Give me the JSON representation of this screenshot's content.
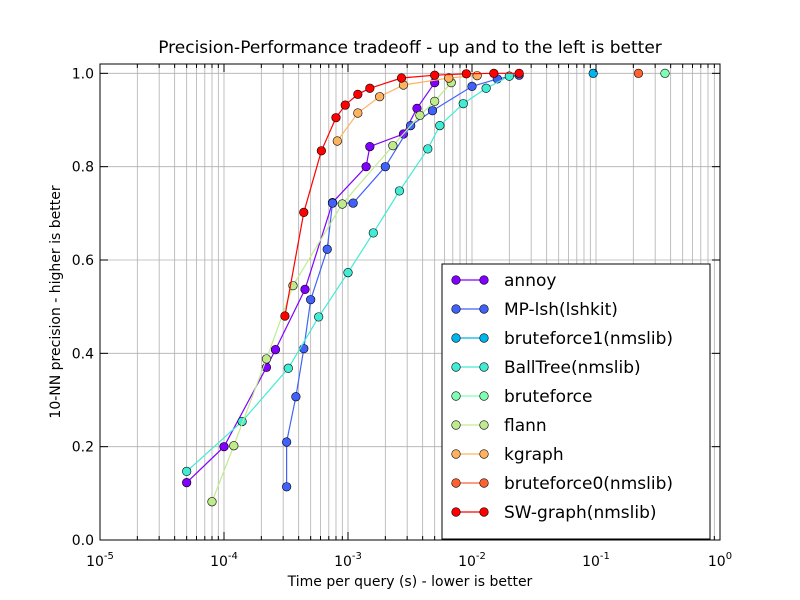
{
  "chart_data": {
    "type": "line",
    "title": "Precision-Performance tradeoff - up and to the left is better",
    "xlabel": "Time per query (s) - lower is better",
    "ylabel": "10-NN precision - higher is better",
    "xscale": "log",
    "xlim": [
      1e-05,
      1
    ],
    "ylim": [
      0.0,
      1.02
    ],
    "x_tick_labels": [
      {
        "base": "10",
        "exp": "-5"
      },
      {
        "base": "10",
        "exp": "-4"
      },
      {
        "base": "10",
        "exp": "-3"
      },
      {
        "base": "10",
        "exp": "-2"
      },
      {
        "base": "10",
        "exp": "-1"
      },
      {
        "base": "10",
        "exp": "0"
      }
    ],
    "y_tick_labels": [
      "0.0",
      "0.2",
      "0.4",
      "0.6",
      "0.8",
      "1.0"
    ],
    "y_ticks": [
      0.0,
      0.2,
      0.4,
      0.6,
      0.8,
      1.0
    ],
    "grid": true,
    "legend_position": "lower-right",
    "series": [
      {
        "name": "annoy",
        "color": "#8000ff",
        "x": [
          5e-05,
          0.0001,
          0.00022,
          0.00026,
          0.00045,
          0.00075,
          0.0014,
          0.0015,
          0.0028,
          0.0036,
          0.005
        ],
        "y": [
          0.123,
          0.2,
          0.37,
          0.408,
          0.537,
          0.723,
          0.8,
          0.843,
          0.87,
          0.925,
          0.98
        ]
      },
      {
        "name": "MP-lsh(lshkit)",
        "color": "#4062fa",
        "x": [
          0.00032,
          0.00032,
          0.00038,
          0.00044,
          0.0005,
          0.00068,
          0.00075,
          0.0011,
          0.002,
          0.0032,
          0.0048,
          0.01,
          0.016,
          0.024
        ],
        "y": [
          0.114,
          0.21,
          0.307,
          0.41,
          0.515,
          0.623,
          0.722,
          0.722,
          0.8,
          0.888,
          0.92,
          0.972,
          0.988,
          0.996
        ]
      },
      {
        "name": "bruteforce1(nmslib)",
        "color": "#00b5eb",
        "x": [
          0.095
        ],
        "y": [
          1.0
        ]
      },
      {
        "name": "BallTree(nmslib)",
        "color": "#40ecd4",
        "x": [
          5e-05,
          0.00014,
          0.00033,
          0.00058,
          0.001,
          0.0016,
          0.0026,
          0.0044,
          0.0055,
          0.0085,
          0.013,
          0.02
        ],
        "y": [
          0.147,
          0.254,
          0.368,
          0.478,
          0.573,
          0.658,
          0.748,
          0.838,
          0.888,
          0.935,
          0.968,
          0.994
        ]
      },
      {
        "name": "bruteforce",
        "color": "#80ffb4",
        "x": [
          0.36
        ],
        "y": [
          1.0
        ]
      },
      {
        "name": "flann",
        "color": "#c0eb8d",
        "x": [
          8e-05,
          0.00012,
          0.00022,
          0.00036,
          0.0009,
          0.0023,
          0.0038,
          0.005,
          0.0068
        ],
        "y": [
          0.082,
          0.202,
          0.388,
          0.545,
          0.72,
          0.845,
          0.91,
          0.94,
          0.98
        ]
      },
      {
        "name": "kgraph",
        "color": "#ffb360",
        "x": [
          0.00082,
          0.0012,
          0.0018,
          0.0028,
          0.0065,
          0.011
        ],
        "y": [
          0.855,
          0.915,
          0.95,
          0.975,
          0.99,
          0.995
        ]
      },
      {
        "name": "bruteforce0(nmslib)",
        "color": "#ff6230",
        "x": [
          0.22
        ],
        "y": [
          1.0
        ]
      },
      {
        "name": "SW-graph(nmslib)",
        "color": "#ff0000",
        "x": [
          0.00031,
          0.00044,
          0.00061,
          0.0008,
          0.00095,
          0.0012,
          0.0015,
          0.0027,
          0.005,
          0.009,
          0.015,
          0.024
        ],
        "y": [
          0.48,
          0.702,
          0.834,
          0.905,
          0.932,
          0.955,
          0.968,
          0.99,
          0.996,
          0.999,
          1.0,
          1.0
        ]
      }
    ]
  }
}
